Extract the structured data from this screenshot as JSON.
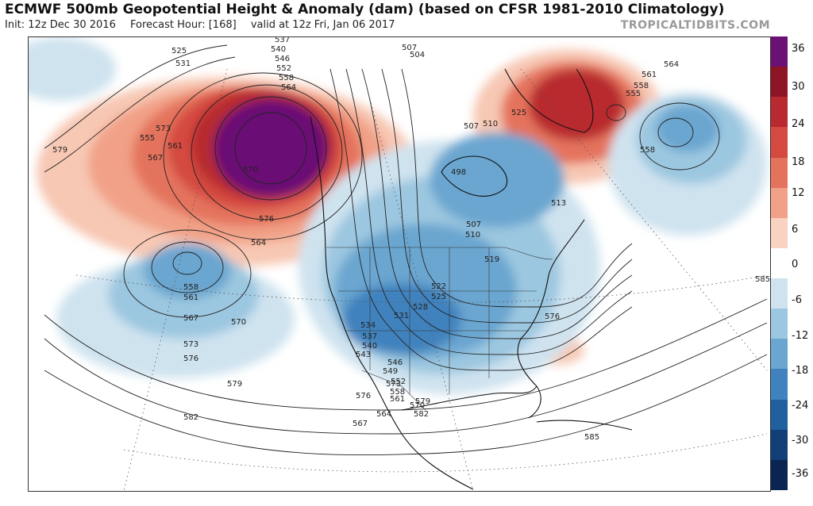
{
  "header": {
    "title": "ECMWF 500mb Geopotential Height & Anomaly (dam) (based on CFSR 1981-2010 Climatology)",
    "init": "Init: 12z Dec 30 2016",
    "forecast_hour": "Forecast Hour: [168]",
    "valid": "valid at 12z Fri, Jan 06 2017",
    "brand": "TROPICALTIDBITS.COM"
  },
  "colorbar": {
    "labels": [
      "36",
      "30",
      "24",
      "18",
      "12",
      "6",
      "0",
      "-6",
      "-12",
      "-18",
      "-24",
      "-30",
      "-36"
    ],
    "colors": [
      "#6b1074",
      "#8e1525",
      "#b82a2f",
      "#d44a40",
      "#e4735d",
      "#f1a187",
      "#f9d2c2",
      "#ffffff",
      "#cfe3ef",
      "#9cc7e0",
      "#6aa6d0",
      "#3f82bd",
      "#21609f",
      "#123f78",
      "#0b2552"
    ]
  },
  "map": {
    "contour_labels": [
      "525",
      "531",
      "537",
      "540",
      "546",
      "552",
      "558",
      "564",
      "567",
      "570",
      "576",
      "573",
      "555",
      "561",
      "579",
      "564",
      "558",
      "561",
      "567",
      "570",
      "573",
      "576",
      "579",
      "582",
      "507",
      "504",
      "498",
      "507",
      "510",
      "513",
      "507",
      "510",
      "519",
      "522",
      "525",
      "528",
      "531",
      "534",
      "537",
      "540",
      "543",
      "546",
      "549",
      "552",
      "558",
      "561",
      "564",
      "567",
      "570",
      "573",
      "576",
      "579",
      "582",
      "585",
      "585",
      "576",
      "525",
      "564",
      "561",
      "558",
      "555",
      "558"
    ]
  }
}
